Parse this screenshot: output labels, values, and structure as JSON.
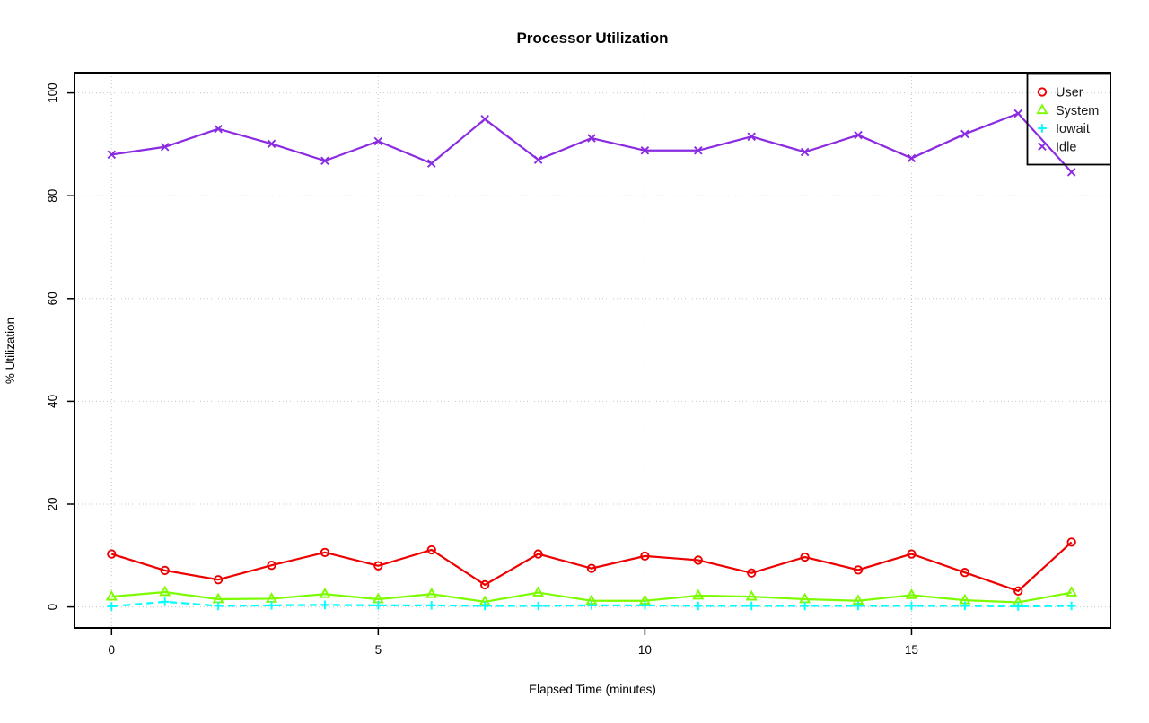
{
  "title": "Processor Utilization",
  "chart_data": {
    "type": "line",
    "title": "Processor Utilization",
    "xlabel": "Elapsed Time (minutes)",
    "ylabel": "% Utilization",
    "xlim": [
      0,
      18
    ],
    "ylim": [
      0,
      100
    ],
    "x_ticks": [
      0,
      5,
      10,
      15
    ],
    "y_ticks": [
      0,
      20,
      40,
      60,
      80,
      100
    ],
    "grid": "dotted-gray-at-ticks",
    "grid_color": "#C8C8C8",
    "frame_color": "#000000",
    "legend_position": "top-right",
    "x": [
      0,
      1,
      2,
      3,
      4,
      5,
      6,
      7,
      8,
      9,
      10,
      11,
      12,
      13,
      14,
      15,
      16,
      17,
      18
    ],
    "series": [
      {
        "name": "User",
        "color": "#EE0000",
        "marker": "circle",
        "line": "solid",
        "values": [
          10.3,
          7.1,
          5.3,
          8.1,
          10.6,
          8.0,
          11.1,
          4.3,
          10.3,
          7.5,
          9.9,
          9.1,
          6.6,
          9.7,
          7.2,
          10.3,
          6.7,
          3.1,
          12.6
        ]
      },
      {
        "name": "System",
        "color": "#7CFC00",
        "marker": "triangle",
        "line": "solid",
        "values": [
          2.0,
          2.9,
          1.5,
          1.6,
          2.5,
          1.5,
          2.5,
          1.0,
          2.8,
          1.2,
          1.2,
          2.2,
          2.0,
          1.5,
          1.2,
          2.3,
          1.3,
          0.9,
          2.8
        ]
      },
      {
        "name": "Iowait",
        "color": "#00FFFF",
        "marker": "plus",
        "line": "dashed",
        "values": [
          0.1,
          1.0,
          0.2,
          0.3,
          0.4,
          0.3,
          0.3,
          0.2,
          0.2,
          0.3,
          0.3,
          0.2,
          0.2,
          0.2,
          0.2,
          0.2,
          0.2,
          0.1,
          0.2
        ]
      },
      {
        "name": "Idle",
        "color": "#8A2BE2",
        "marker": "x",
        "line": "solid",
        "values": [
          88.0,
          89.5,
          93.0,
          90.1,
          86.8,
          90.6,
          86.3,
          94.9,
          87.0,
          91.2,
          88.8,
          88.8,
          91.5,
          88.5,
          91.8,
          87.3,
          92.0,
          96.0,
          84.6
        ]
      }
    ]
  }
}
